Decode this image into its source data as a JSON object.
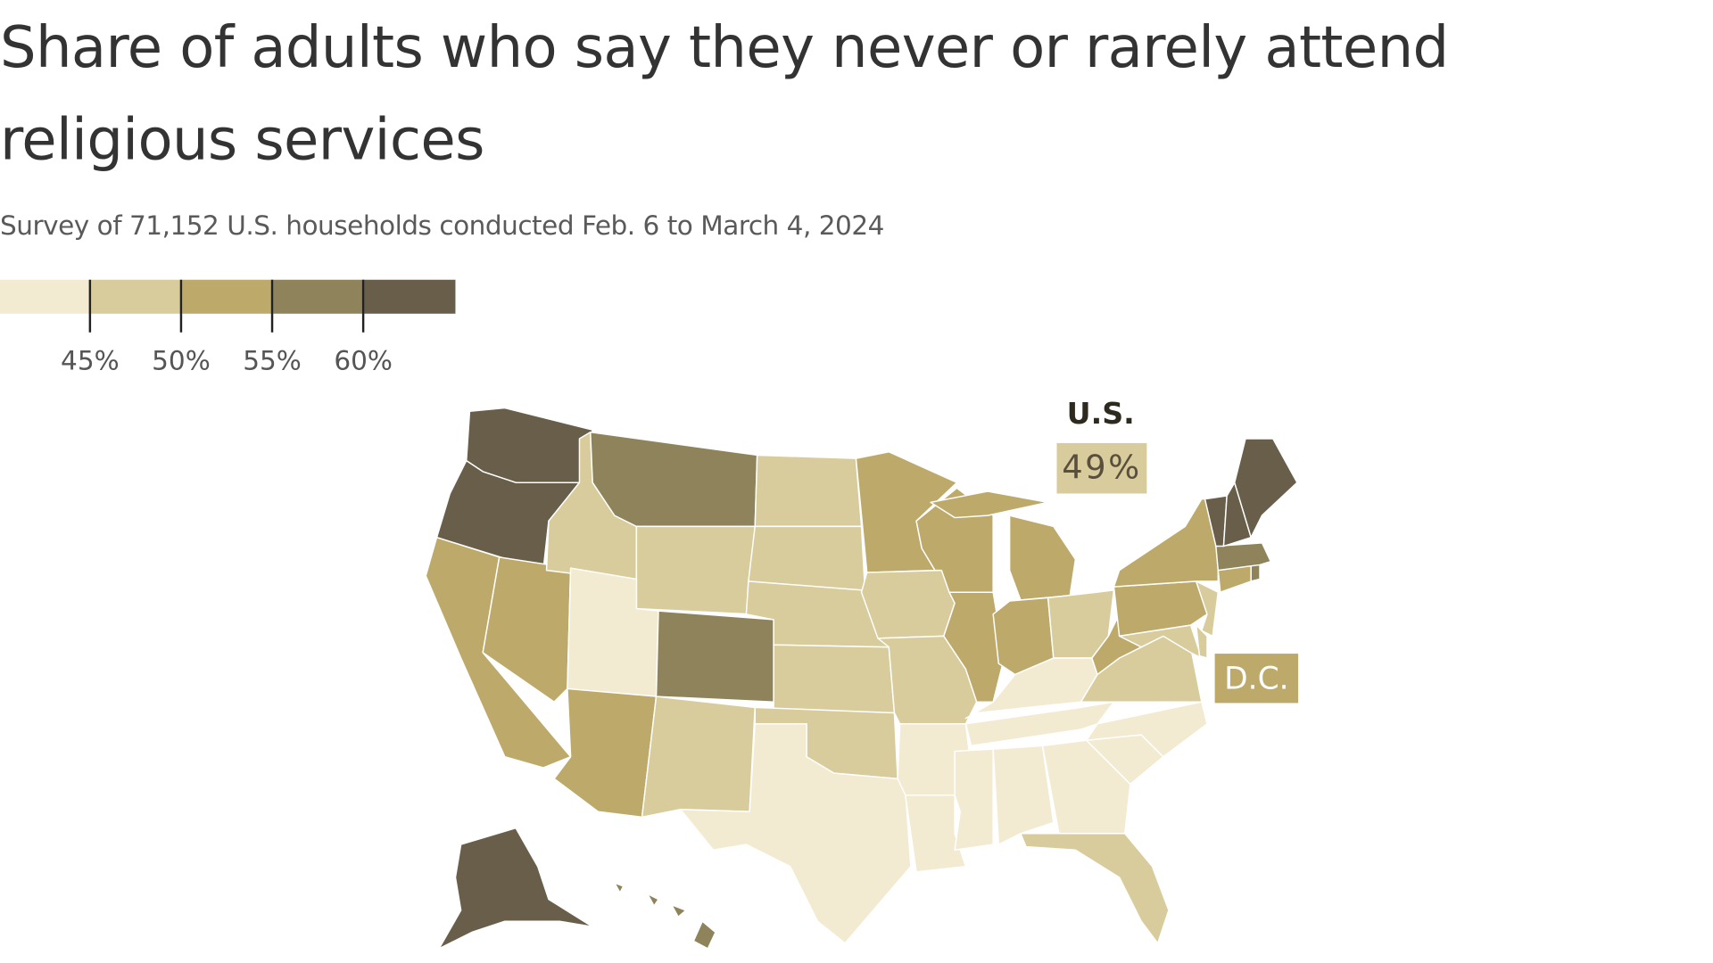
{
  "title": "Share of adults who say they never or rarely attend religious services",
  "subtitle": "Survey of 71,152 U.S. households conducted Feb. 6 to March 4, 2024",
  "legend": {
    "colors": [
      "#f3ead2",
      "#d8cc9c",
      "#bdaa6a",
      "#8f835c",
      "#695e4a"
    ],
    "thresholds": [
      "45%",
      "50%",
      "55%",
      "60%"
    ]
  },
  "us_callout": {
    "label": "U.S.",
    "value": "49%"
  },
  "dc_callout": {
    "label": "D.C."
  },
  "state_bins": {
    "WA": 4,
    "OR": 4,
    "CA": 2,
    "NV": 2,
    "ID": 1,
    "MT": 3,
    "WY": 1,
    "UT": 0,
    "CO": 3,
    "AZ": 2,
    "NM": 1,
    "ND": 1,
    "SD": 1,
    "NE": 1,
    "KS": 1,
    "OK": 1,
    "TX": 0,
    "MN": 2,
    "IA": 1,
    "MO": 1,
    "AR": 0,
    "LA": 0,
    "WI": 2,
    "IL": 2,
    "MI": 2,
    "IN": 2,
    "OH": 1,
    "KY": 0,
    "TN": 0,
    "MS": 0,
    "AL": 0,
    "GA": 0,
    "FL": 1,
    "SC": 0,
    "NC": 0,
    "VA": 1,
    "WV": 2,
    "PA": 2,
    "NY": 2,
    "NJ": 1,
    "MD": 1,
    "DE": 1,
    "CT": 2,
    "RI": 3,
    "MA": 3,
    "VT": 4,
    "NH": 4,
    "ME": 4,
    "AK": 4,
    "HI": 3,
    "DC": 2
  }
}
